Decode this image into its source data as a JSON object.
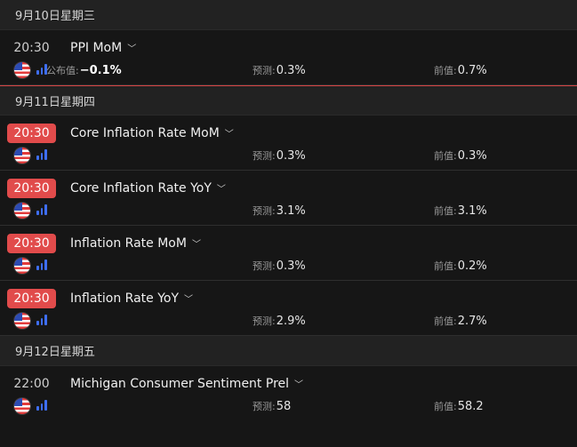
{
  "days": [
    {
      "header": "9月10日星期三",
      "active": false,
      "events": [
        {
          "time": "20:30",
          "live": false,
          "title": "PPI MoM",
          "actual_label": "公布值:",
          "actual": "−0.1%",
          "forecast_label": "预测:",
          "forecast": "0.3%",
          "previous_label": "前值:",
          "previous": "0.7%"
        }
      ]
    },
    {
      "header": "9月11日星期四",
      "active": true,
      "events": [
        {
          "time": "20:30",
          "live": true,
          "title": "Core Inflation Rate MoM",
          "forecast_label": "预测:",
          "forecast": "0.3%",
          "previous_label": "前值:",
          "previous": "0.3%"
        },
        {
          "time": "20:30",
          "live": true,
          "title": "Core Inflation Rate YoY",
          "forecast_label": "预测:",
          "forecast": "3.1%",
          "previous_label": "前值:",
          "previous": "3.1%"
        },
        {
          "time": "20:30",
          "live": true,
          "title": "Inflation Rate MoM",
          "forecast_label": "预测:",
          "forecast": "0.3%",
          "previous_label": "前值:",
          "previous": "0.2%"
        },
        {
          "time": "20:30",
          "live": true,
          "title": "Inflation Rate YoY",
          "forecast_label": "预测:",
          "forecast": "2.9%",
          "previous_label": "前值:",
          "previous": "2.7%"
        }
      ]
    },
    {
      "header": "9月12日星期五",
      "active": false,
      "events": [
        {
          "time": "22:00",
          "live": false,
          "title": "Michigan Consumer Sentiment Prel",
          "forecast_label": "预测:",
          "forecast": "58",
          "previous_label": "前值:",
          "previous": "58.2"
        }
      ]
    }
  ],
  "icons": {
    "flag": "us-flag-icon",
    "chart": "bar-chart-icon",
    "expand": "chevron-down-icon"
  },
  "colors": {
    "live_time": "#e14b4b",
    "chart_icon": "#3e6ef2",
    "background": "#161616",
    "header_bg": "#222222"
  }
}
